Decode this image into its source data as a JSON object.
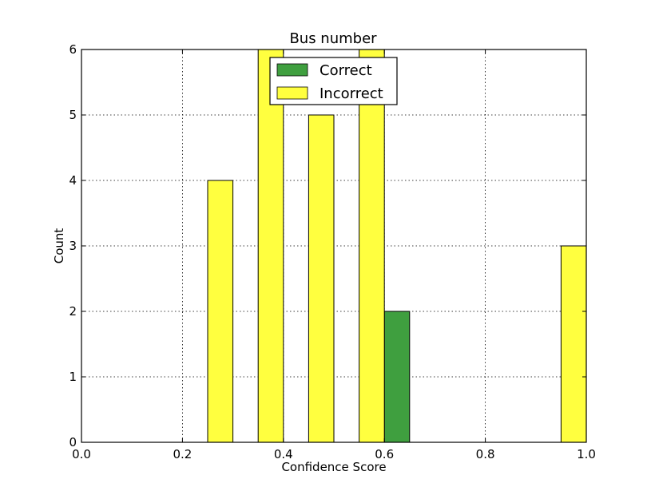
{
  "chart_data": {
    "type": "bar",
    "title": "Bus number",
    "xlabel": "Confidence Score",
    "ylabel": "Count",
    "xlim": [
      0.0,
      1.0
    ],
    "ylim": [
      0,
      6
    ],
    "x_ticks": [
      "0.0",
      "0.2",
      "0.4",
      "0.6",
      "0.8",
      "1.0"
    ],
    "y_ticks": [
      "0",
      "1",
      "2",
      "3",
      "4",
      "5",
      "6"
    ],
    "grid": true,
    "legend_position": "top-center",
    "bin_edges": [
      0.0,
      0.1,
      0.2,
      0.3,
      0.4,
      0.5,
      0.6,
      0.7,
      0.8,
      0.9,
      1.0
    ],
    "series": [
      {
        "name": "Correct",
        "color": "#3f9f3f",
        "values": [
          0,
          0,
          0,
          0,
          0,
          0,
          2,
          0,
          0,
          0
        ]
      },
      {
        "name": "Incorrect",
        "color": "#ffff3f",
        "values": [
          0,
          0,
          4,
          6,
          5,
          6,
          0,
          0,
          0,
          3
        ]
      }
    ]
  }
}
